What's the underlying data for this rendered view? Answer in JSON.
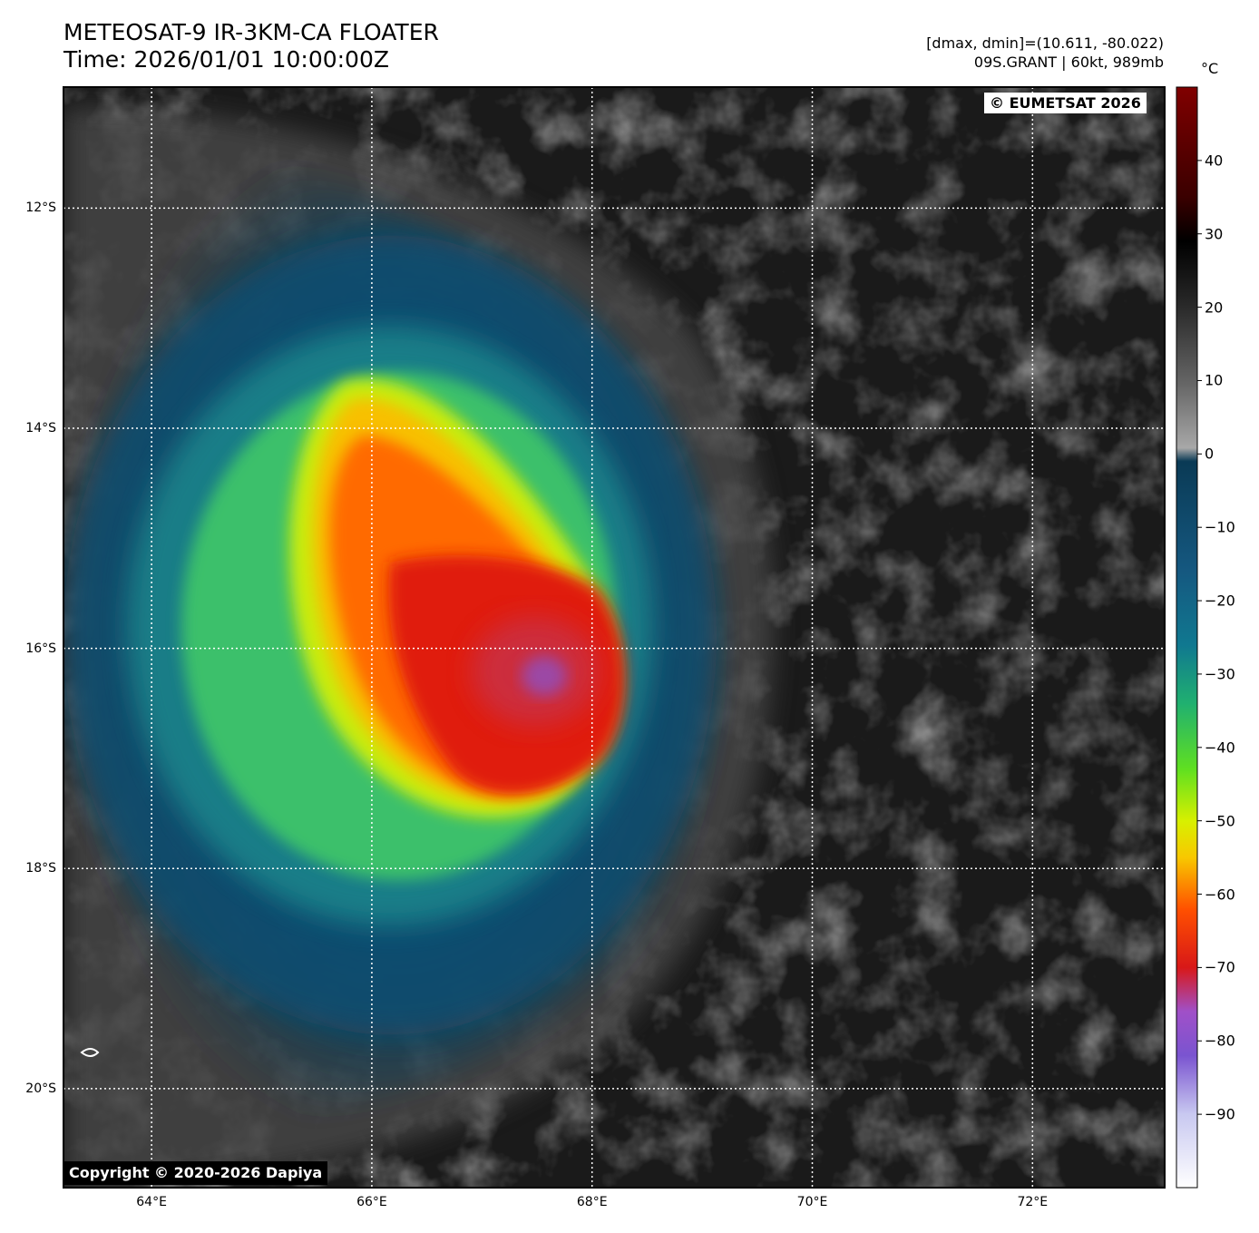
{
  "header": {
    "title_line1": "METEOSAT-9 IR-3KM-CA FLOATER",
    "title_line2": "Time: 2026/01/01 10:00:00Z",
    "range_info": "[dmax, dmin]=(10.611, -80.022)",
    "storm_info": "09S.GRANT | 60kt, 989mb"
  },
  "map": {
    "lon_range": [
      63.2,
      73.2
    ],
    "lat_range": [
      -20.9,
      -10.9
    ],
    "lon_ticks": [
      {
        "value": 64,
        "label": "64°E"
      },
      {
        "value": 66,
        "label": "66°E"
      },
      {
        "value": 68,
        "label": "68°E"
      },
      {
        "value": 70,
        "label": "70°E"
      },
      {
        "value": 72,
        "label": "72°E"
      }
    ],
    "lat_ticks": [
      {
        "value": -12,
        "label": "12°S"
      },
      {
        "value": -14,
        "label": "14°S"
      },
      {
        "value": -16,
        "label": "16°S"
      },
      {
        "value": -18,
        "label": "18°S"
      },
      {
        "value": -20,
        "label": "20°S"
      }
    ],
    "gridlines": true,
    "storm_center": {
      "lon": 67.5,
      "lat": -16.3
    }
  },
  "colorbar": {
    "unit": "°C",
    "range": [
      -100,
      50
    ],
    "ticks": [
      {
        "value": 40,
        "label": "40"
      },
      {
        "value": 30,
        "label": "30"
      },
      {
        "value": 20,
        "label": "20"
      },
      {
        "value": 10,
        "label": "10"
      },
      {
        "value": 0,
        "label": "0"
      },
      {
        "value": -10,
        "label": "−10"
      },
      {
        "value": -20,
        "label": "−20"
      },
      {
        "value": -30,
        "label": "−30"
      },
      {
        "value": -40,
        "label": "−40"
      },
      {
        "value": -50,
        "label": "−50"
      },
      {
        "value": -60,
        "label": "−60"
      },
      {
        "value": -70,
        "label": "−70"
      },
      {
        "value": -80,
        "label": "−80"
      },
      {
        "value": -90,
        "label": "−90"
      }
    ]
  },
  "credits": {
    "eumetsat": "© EUMETSAT 2026",
    "dapiya": "Copyright © 2020-2026 Dapiya"
  }
}
